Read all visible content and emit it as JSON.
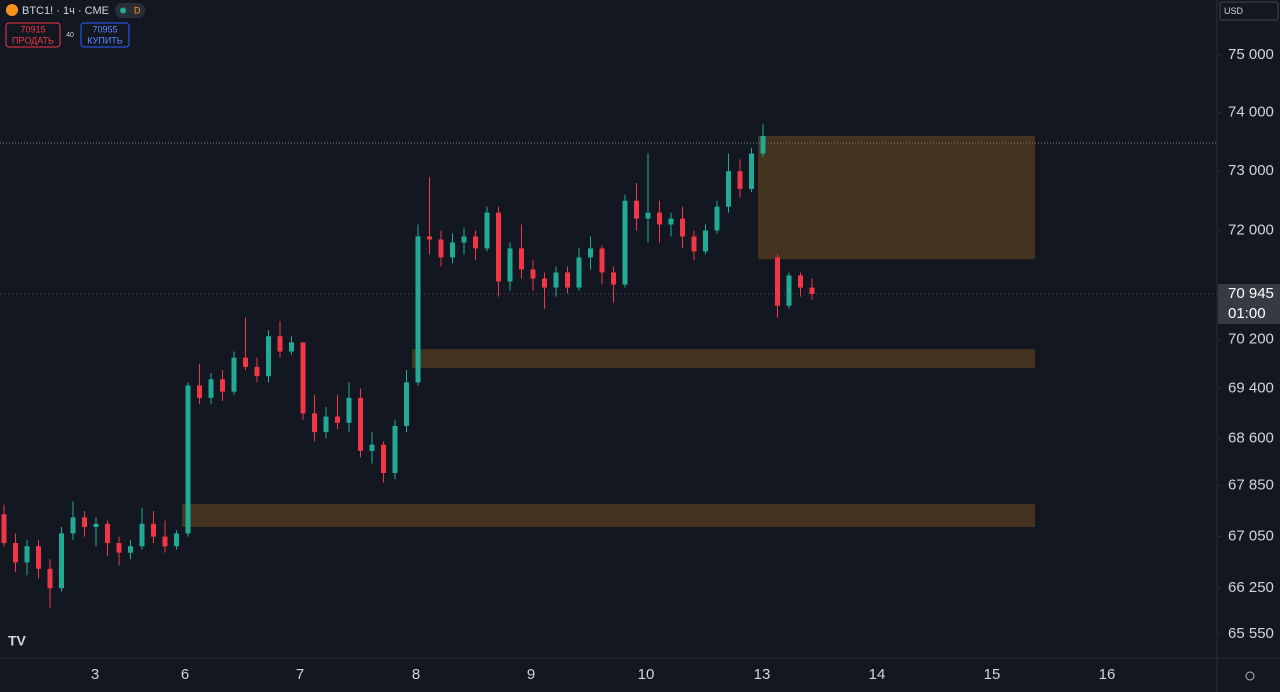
{
  "header": {
    "symbol": "BTC1! · 1ч · CME",
    "badge": "D",
    "sell_price": "70915",
    "sell_label": "ПРОДАТЬ",
    "spread": "40",
    "buy_price": "70955",
    "buy_label": "КУПИТЬ",
    "currency": "USD"
  },
  "chart_data": {
    "type": "candlestick",
    "log_scale": true,
    "ylim": [
      65183,
      75966
    ],
    "yticks": [
      {
        "value": 75000,
        "label": "75 000"
      },
      {
        "value": 74000,
        "label": "74 000"
      },
      {
        "value": 73000,
        "label": "73 000"
      },
      {
        "value": 72000,
        "label": "72 000"
      },
      {
        "value": 70200,
        "label": "70 200"
      },
      {
        "value": 69400,
        "label": "69 400"
      },
      {
        "value": 68600,
        "label": "68 600"
      },
      {
        "value": 67850,
        "label": "67 850"
      },
      {
        "value": 67050,
        "label": "67 050"
      },
      {
        "value": 66250,
        "label": "66 250"
      },
      {
        "value": 65550,
        "label": "65 550"
      }
    ],
    "xticks": [
      "3",
      "6",
      "7",
      "8",
      "9",
      "10",
      "13",
      "14",
      "15",
      "16"
    ],
    "up_color": "#22ab94",
    "down_color": "#f23645",
    "zone_color": "#43331f",
    "open": [
      67400,
      66950,
      66650,
      66900,
      66550,
      66250,
      67100,
      67350,
      67200,
      67250,
      66950,
      66800,
      66900,
      67250,
      67050,
      66900,
      67100,
      69450,
      69250,
      69550,
      69350,
      69900,
      69750,
      69600,
      70250,
      70000,
      70150,
      69000,
      68700,
      68950,
      68850,
      69250,
      68400,
      68500,
      68050,
      68800,
      69500,
      71900,
      71850,
      71550,
      71800,
      71900,
      71700,
      72300,
      71150,
      71700,
      71350,
      71200,
      71050,
      71300,
      71050,
      71550,
      71700,
      71300,
      71100,
      72500,
      72200,
      72300,
      72100,
      72200,
      71900,
      71650,
      72000,
      72400,
      73000,
      72700,
      73300,
      71550,
      70750,
      71250,
      71050
    ],
    "high": [
      67550,
      67100,
      67000,
      67000,
      66700,
      67200,
      67600,
      67450,
      67350,
      67300,
      67050,
      67000,
      67500,
      67450,
      67300,
      67150,
      69500,
      69800,
      69650,
      69700,
      70000,
      70550,
      69900,
      70350,
      70500,
      70250,
      70150,
      69300,
      69100,
      69300,
      69500,
      69400,
      68700,
      68550,
      68900,
      69700,
      72100,
      72900,
      72000,
      71950,
      72050,
      72000,
      72400,
      72400,
      71800,
      72100,
      71500,
      71300,
      71400,
      71400,
      71700,
      71900,
      71750,
      71400,
      72600,
      72800,
      73300,
      72500,
      72300,
      72400,
      72000,
      72100,
      72500,
      73300,
      73200,
      73400,
      73800,
      71600,
      71300,
      71300,
      71200
    ],
    "low": [
      66900,
      66500,
      66450,
      66400,
      65950,
      66200,
      67000,
      67050,
      66900,
      66750,
      66600,
      66700,
      66850,
      66950,
      66800,
      66850,
      67050,
      69150,
      69150,
      69200,
      69300,
      69700,
      69500,
      69500,
      69900,
      69950,
      68900,
      68550,
      68600,
      68750,
      68700,
      68300,
      68200,
      67900,
      67950,
      68700,
      69450,
      71600,
      71400,
      71450,
      71600,
      71500,
      71650,
      70900,
      71000,
      71200,
      71000,
      70700,
      70900,
      70950,
      71000,
      71350,
      71100,
      70800,
      71050,
      72000,
      71800,
      71800,
      71900,
      71700,
      71500,
      71600,
      71950,
      72300,
      72550,
      72650,
      73250,
      70550,
      70700,
      70900,
      70850
    ],
    "close": [
      66950,
      66650,
      66900,
      66550,
      66250,
      67100,
      67350,
      67200,
      67250,
      66950,
      66800,
      66900,
      67250,
      67050,
      66900,
      67100,
      69450,
      69250,
      69550,
      69350,
      69900,
      69750,
      69600,
      70250,
      70000,
      70150,
      69000,
      68700,
      68950,
      68850,
      69250,
      68400,
      68500,
      68050,
      68800,
      69500,
      71900,
      71850,
      71550,
      71800,
      71900,
      71700,
      72300,
      71150,
      71700,
      71350,
      71200,
      71050,
      71300,
      71050,
      71550,
      71700,
      71300,
      71100,
      72500,
      72200,
      72300,
      72100,
      72200,
      71900,
      71650,
      72000,
      72400,
      73000,
      72700,
      73300,
      73600,
      70750,
      71250,
      71050,
      70945
    ],
    "zones": [
      {
        "top": 73600,
        "bottom": 71520
      },
      {
        "top": 70040,
        "bottom": 69730
      },
      {
        "top": 67560,
        "bottom": 67200
      }
    ],
    "high_line": 73480,
    "last_price": {
      "value": 70945,
      "label": "70 945"
    },
    "countdown": "01:00"
  }
}
